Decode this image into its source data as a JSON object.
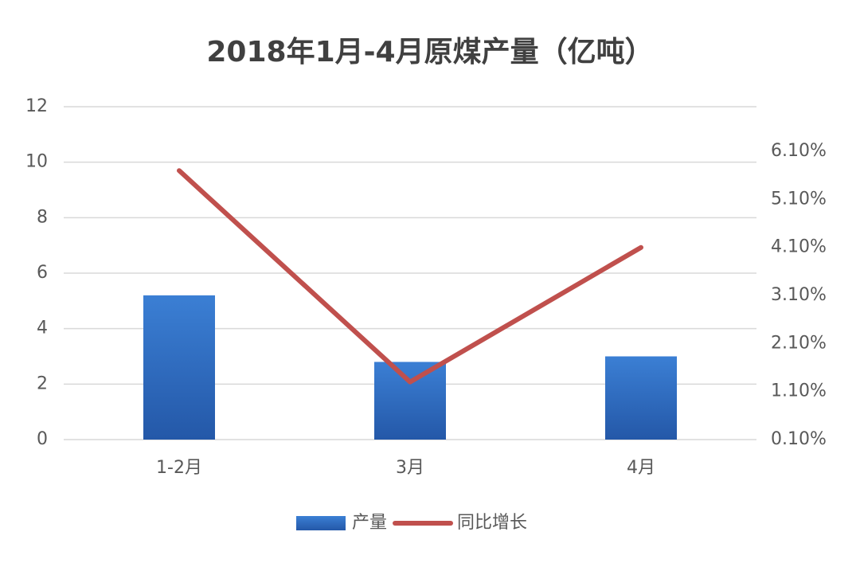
{
  "chart_data": {
    "type": "bar",
    "title": "2018年1月-4月原煤产量（亿吨）",
    "categories": [
      "1-2月",
      "3月",
      "4月"
    ],
    "series": [
      {
        "name": "产量",
        "color": "#2e6fc0",
        "values": [
          5.2,
          2.8,
          3.0
        ]
      },
      {
        "name": "同比增长",
        "color": "#c0504d",
        "type": "line",
        "axis": "y2",
        "values": [
          5.7,
          1.3,
          4.1
        ]
      }
    ],
    "ylim": [
      0,
      12
    ],
    "yticks": [
      0,
      2,
      4,
      6,
      8,
      10,
      12
    ],
    "y2lim": [
      0.1,
      7.03
    ],
    "y2ticks": [
      {
        "value": 0.1,
        "label": "0.10%"
      },
      {
        "value": 1.1,
        "label": "1.10%"
      },
      {
        "value": 2.1,
        "label": "2.10%"
      },
      {
        "value": 3.1,
        "label": "3.10%"
      },
      {
        "value": 4.1,
        "label": "4.10%"
      },
      {
        "value": 5.1,
        "label": "5.10%"
      },
      {
        "value": 6.1,
        "label": "6.10%"
      }
    ],
    "grid": true,
    "legend": "bottom"
  }
}
